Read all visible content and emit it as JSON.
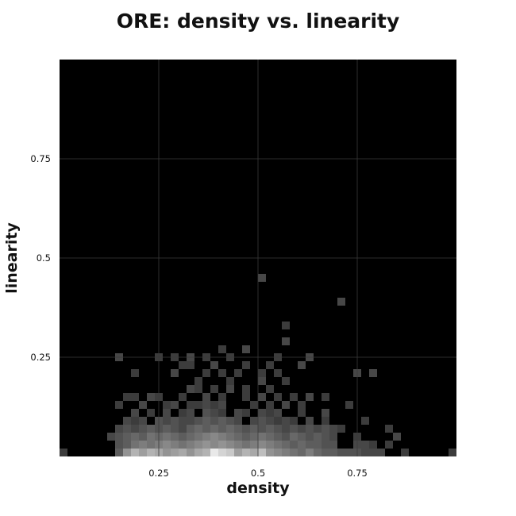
{
  "chart_data": {
    "type": "heatmap",
    "title": "ORE: density vs. linearity",
    "xlabel": "density",
    "ylabel": "linearity",
    "xlim": [
      0,
      1
    ],
    "ylim": [
      0,
      1
    ],
    "bins": 50,
    "grid": true,
    "colormap": "grayscale",
    "colors": {
      "background": "#000000",
      "low": "#1c1c1c",
      "high": "#f4f4f4",
      "grid": "#3a3a3a"
    },
    "x_ticks": [
      0.25,
      0.5,
      0.75
    ],
    "x_tick_labels": [
      "0.25",
      "0.5",
      "0.75"
    ],
    "y_ticks": [
      0.25,
      0.5,
      0.75
    ],
    "y_tick_labels": [
      "0.25",
      "0.5",
      "0.75"
    ],
    "cells": [
      [
        0.01,
        0.01,
        0.15
      ],
      [
        0.15,
        0.01,
        0.3
      ],
      [
        0.17,
        0.01,
        0.55
      ],
      [
        0.19,
        0.01,
        0.7
      ],
      [
        0.21,
        0.01,
        0.6
      ],
      [
        0.23,
        0.01,
        0.7
      ],
      [
        0.25,
        0.01,
        0.65
      ],
      [
        0.27,
        0.01,
        0.55
      ],
      [
        0.29,
        0.01,
        0.6
      ],
      [
        0.31,
        0.01,
        0.65
      ],
      [
        0.33,
        0.01,
        0.55
      ],
      [
        0.35,
        0.01,
        0.65
      ],
      [
        0.37,
        0.01,
        0.7
      ],
      [
        0.39,
        0.01,
        0.95
      ],
      [
        0.41,
        0.01,
        0.85
      ],
      [
        0.43,
        0.01,
        0.8
      ],
      [
        0.45,
        0.01,
        0.6
      ],
      [
        0.47,
        0.01,
        0.7
      ],
      [
        0.49,
        0.01,
        0.65
      ],
      [
        0.51,
        0.01,
        0.75
      ],
      [
        0.53,
        0.01,
        0.55
      ],
      [
        0.55,
        0.01,
        0.5
      ],
      [
        0.57,
        0.01,
        0.45
      ],
      [
        0.59,
        0.01,
        0.4
      ],
      [
        0.61,
        0.01,
        0.35
      ],
      [
        0.63,
        0.01,
        0.45
      ],
      [
        0.65,
        0.01,
        0.35
      ],
      [
        0.67,
        0.01,
        0.3
      ],
      [
        0.69,
        0.01,
        0.3
      ],
      [
        0.71,
        0.01,
        0.25
      ],
      [
        0.73,
        0.01,
        0.25
      ],
      [
        0.75,
        0.01,
        0.25
      ],
      [
        0.77,
        0.01,
        0.2
      ],
      [
        0.79,
        0.01,
        0.2
      ],
      [
        0.81,
        0.01,
        0.2
      ],
      [
        0.87,
        0.01,
        0.15
      ],
      [
        0.99,
        0.01,
        0.15
      ],
      [
        0.15,
        0.03,
        0.25
      ],
      [
        0.17,
        0.03,
        0.3
      ],
      [
        0.19,
        0.03,
        0.4
      ],
      [
        0.21,
        0.03,
        0.45
      ],
      [
        0.23,
        0.03,
        0.4
      ],
      [
        0.25,
        0.03,
        0.45
      ],
      [
        0.27,
        0.03,
        0.5
      ],
      [
        0.29,
        0.03,
        0.45
      ],
      [
        0.31,
        0.03,
        0.4
      ],
      [
        0.33,
        0.03,
        0.45
      ],
      [
        0.35,
        0.03,
        0.5
      ],
      [
        0.37,
        0.03,
        0.55
      ],
      [
        0.39,
        0.03,
        0.5
      ],
      [
        0.41,
        0.03,
        0.55
      ],
      [
        0.43,
        0.03,
        0.5
      ],
      [
        0.45,
        0.03,
        0.45
      ],
      [
        0.47,
        0.03,
        0.4
      ],
      [
        0.49,
        0.03,
        0.45
      ],
      [
        0.51,
        0.03,
        0.5
      ],
      [
        0.53,
        0.03,
        0.45
      ],
      [
        0.55,
        0.03,
        0.4
      ],
      [
        0.57,
        0.03,
        0.35
      ],
      [
        0.59,
        0.03,
        0.3
      ],
      [
        0.61,
        0.03,
        0.35
      ],
      [
        0.63,
        0.03,
        0.3
      ],
      [
        0.65,
        0.03,
        0.3
      ],
      [
        0.67,
        0.03,
        0.25
      ],
      [
        0.69,
        0.03,
        0.25
      ],
      [
        0.75,
        0.03,
        0.2
      ],
      [
        0.77,
        0.03,
        0.2
      ],
      [
        0.79,
        0.03,
        0.15
      ],
      [
        0.83,
        0.03,
        0.15
      ],
      [
        0.13,
        0.05,
        0.2
      ],
      [
        0.15,
        0.05,
        0.25
      ],
      [
        0.17,
        0.05,
        0.3
      ],
      [
        0.19,
        0.05,
        0.35
      ],
      [
        0.21,
        0.05,
        0.3
      ],
      [
        0.23,
        0.05,
        0.4
      ],
      [
        0.25,
        0.05,
        0.35
      ],
      [
        0.27,
        0.05,
        0.4
      ],
      [
        0.29,
        0.05,
        0.35
      ],
      [
        0.31,
        0.05,
        0.3
      ],
      [
        0.33,
        0.05,
        0.35
      ],
      [
        0.35,
        0.05,
        0.4
      ],
      [
        0.37,
        0.05,
        0.45
      ],
      [
        0.39,
        0.05,
        0.5
      ],
      [
        0.41,
        0.05,
        0.45
      ],
      [
        0.43,
        0.05,
        0.4
      ],
      [
        0.45,
        0.05,
        0.35
      ],
      [
        0.47,
        0.05,
        0.3
      ],
      [
        0.49,
        0.05,
        0.35
      ],
      [
        0.51,
        0.05,
        0.4
      ],
      [
        0.53,
        0.05,
        0.35
      ],
      [
        0.55,
        0.05,
        0.3
      ],
      [
        0.57,
        0.05,
        0.25
      ],
      [
        0.59,
        0.05,
        0.35
      ],
      [
        0.61,
        0.05,
        0.3
      ],
      [
        0.63,
        0.05,
        0.25
      ],
      [
        0.65,
        0.05,
        0.3
      ],
      [
        0.67,
        0.05,
        0.25
      ],
      [
        0.69,
        0.05,
        0.2
      ],
      [
        0.75,
        0.05,
        0.15
      ],
      [
        0.85,
        0.05,
        0.2
      ],
      [
        0.15,
        0.07,
        0.2
      ],
      [
        0.17,
        0.07,
        0.25
      ],
      [
        0.19,
        0.07,
        0.2
      ],
      [
        0.21,
        0.07,
        0.25
      ],
      [
        0.23,
        0.07,
        0.3
      ],
      [
        0.25,
        0.07,
        0.25
      ],
      [
        0.27,
        0.07,
        0.3
      ],
      [
        0.29,
        0.07,
        0.25
      ],
      [
        0.31,
        0.07,
        0.2
      ],
      [
        0.33,
        0.07,
        0.3
      ],
      [
        0.35,
        0.07,
        0.35
      ],
      [
        0.37,
        0.07,
        0.3
      ],
      [
        0.39,
        0.07,
        0.35
      ],
      [
        0.41,
        0.07,
        0.3
      ],
      [
        0.43,
        0.07,
        0.35
      ],
      [
        0.45,
        0.07,
        0.3
      ],
      [
        0.47,
        0.07,
        0.25
      ],
      [
        0.49,
        0.07,
        0.3
      ],
      [
        0.51,
        0.07,
        0.25
      ],
      [
        0.53,
        0.07,
        0.3
      ],
      [
        0.55,
        0.07,
        0.25
      ],
      [
        0.57,
        0.07,
        0.2
      ],
      [
        0.59,
        0.07,
        0.25
      ],
      [
        0.61,
        0.07,
        0.2
      ],
      [
        0.63,
        0.07,
        0.25
      ],
      [
        0.65,
        0.07,
        0.2
      ],
      [
        0.67,
        0.07,
        0.25
      ],
      [
        0.69,
        0.07,
        0.2
      ],
      [
        0.71,
        0.07,
        0.15
      ],
      [
        0.83,
        0.07,
        0.15
      ],
      [
        0.17,
        0.09,
        0.2
      ],
      [
        0.19,
        0.09,
        0.15
      ],
      [
        0.21,
        0.09,
        0.2
      ],
      [
        0.25,
        0.09,
        0.25
      ],
      [
        0.27,
        0.09,
        0.2
      ],
      [
        0.29,
        0.09,
        0.25
      ],
      [
        0.31,
        0.09,
        0.2
      ],
      [
        0.33,
        0.09,
        0.2
      ],
      [
        0.35,
        0.09,
        0.25
      ],
      [
        0.37,
        0.09,
        0.3
      ],
      [
        0.39,
        0.09,
        0.25
      ],
      [
        0.41,
        0.09,
        0.3
      ],
      [
        0.43,
        0.09,
        0.25
      ],
      [
        0.45,
        0.09,
        0.2
      ],
      [
        0.49,
        0.09,
        0.2
      ],
      [
        0.51,
        0.09,
        0.25
      ],
      [
        0.53,
        0.09,
        0.2
      ],
      [
        0.55,
        0.09,
        0.15
      ],
      [
        0.57,
        0.09,
        0.2
      ],
      [
        0.59,
        0.09,
        0.15
      ],
      [
        0.63,
        0.09,
        0.2
      ],
      [
        0.67,
        0.09,
        0.15
      ],
      [
        0.77,
        0.09,
        0.15
      ],
      [
        0.19,
        0.11,
        0.2
      ],
      [
        0.23,
        0.11,
        0.15
      ],
      [
        0.27,
        0.11,
        0.2
      ],
      [
        0.31,
        0.11,
        0.15
      ],
      [
        0.33,
        0.11,
        0.2
      ],
      [
        0.37,
        0.11,
        0.25
      ],
      [
        0.39,
        0.11,
        0.2
      ],
      [
        0.41,
        0.11,
        0.15
      ],
      [
        0.45,
        0.11,
        0.2
      ],
      [
        0.47,
        0.11,
        0.15
      ],
      [
        0.51,
        0.11,
        0.2
      ],
      [
        0.53,
        0.11,
        0.15
      ],
      [
        0.55,
        0.11,
        0.2
      ],
      [
        0.61,
        0.11,
        0.15
      ],
      [
        0.67,
        0.11,
        0.2
      ],
      [
        0.15,
        0.13,
        0.15
      ],
      [
        0.21,
        0.13,
        0.2
      ],
      [
        0.27,
        0.13,
        0.15
      ],
      [
        0.29,
        0.13,
        0.2
      ],
      [
        0.33,
        0.13,
        0.15
      ],
      [
        0.35,
        0.13,
        0.15
      ],
      [
        0.37,
        0.13,
        0.2
      ],
      [
        0.39,
        0.13,
        0.15
      ],
      [
        0.41,
        0.13,
        0.2
      ],
      [
        0.49,
        0.13,
        0.15
      ],
      [
        0.53,
        0.13,
        0.15
      ],
      [
        0.57,
        0.13,
        0.2
      ],
      [
        0.61,
        0.13,
        0.15
      ],
      [
        0.73,
        0.13,
        0.15
      ],
      [
        0.17,
        0.15,
        0.15
      ],
      [
        0.19,
        0.15,
        0.15
      ],
      [
        0.23,
        0.15,
        0.2
      ],
      [
        0.25,
        0.15,
        0.15
      ],
      [
        0.31,
        0.15,
        0.15
      ],
      [
        0.37,
        0.15,
        0.2
      ],
      [
        0.41,
        0.15,
        0.15
      ],
      [
        0.47,
        0.15,
        0.15
      ],
      [
        0.51,
        0.15,
        0.2
      ],
      [
        0.55,
        0.15,
        0.15
      ],
      [
        0.59,
        0.15,
        0.15
      ],
      [
        0.63,
        0.15,
        0.2
      ],
      [
        0.67,
        0.15,
        0.15
      ],
      [
        0.33,
        0.17,
        0.2
      ],
      [
        0.35,
        0.17,
        0.15
      ],
      [
        0.39,
        0.17,
        0.15
      ],
      [
        0.43,
        0.17,
        0.2
      ],
      [
        0.47,
        0.17,
        0.15
      ],
      [
        0.53,
        0.17,
        0.15
      ],
      [
        0.35,
        0.19,
        0.15
      ],
      [
        0.43,
        0.19,
        0.15
      ],
      [
        0.51,
        0.19,
        0.2
      ],
      [
        0.57,
        0.19,
        0.15
      ],
      [
        0.19,
        0.21,
        0.15
      ],
      [
        0.29,
        0.21,
        0.2
      ],
      [
        0.37,
        0.21,
        0.15
      ],
      [
        0.41,
        0.21,
        0.15
      ],
      [
        0.45,
        0.21,
        0.15
      ],
      [
        0.51,
        0.21,
        0.15
      ],
      [
        0.55,
        0.21,
        0.15
      ],
      [
        0.75,
        0.21,
        0.2
      ],
      [
        0.79,
        0.21,
        0.2
      ],
      [
        0.31,
        0.23,
        0.15
      ],
      [
        0.33,
        0.23,
        0.15
      ],
      [
        0.39,
        0.23,
        0.2
      ],
      [
        0.47,
        0.23,
        0.15
      ],
      [
        0.53,
        0.23,
        0.15
      ],
      [
        0.61,
        0.23,
        0.2
      ],
      [
        0.15,
        0.25,
        0.2
      ],
      [
        0.25,
        0.25,
        0.15
      ],
      [
        0.29,
        0.25,
        0.15
      ],
      [
        0.33,
        0.25,
        0.2
      ],
      [
        0.37,
        0.25,
        0.15
      ],
      [
        0.43,
        0.25,
        0.15
      ],
      [
        0.55,
        0.25,
        0.15
      ],
      [
        0.63,
        0.25,
        0.2
      ],
      [
        0.41,
        0.27,
        0.15
      ],
      [
        0.47,
        0.27,
        0.2
      ],
      [
        0.57,
        0.29,
        0.2
      ],
      [
        0.57,
        0.33,
        0.15
      ],
      [
        0.71,
        0.39,
        0.2
      ],
      [
        0.51,
        0.45,
        0.2
      ]
    ]
  }
}
